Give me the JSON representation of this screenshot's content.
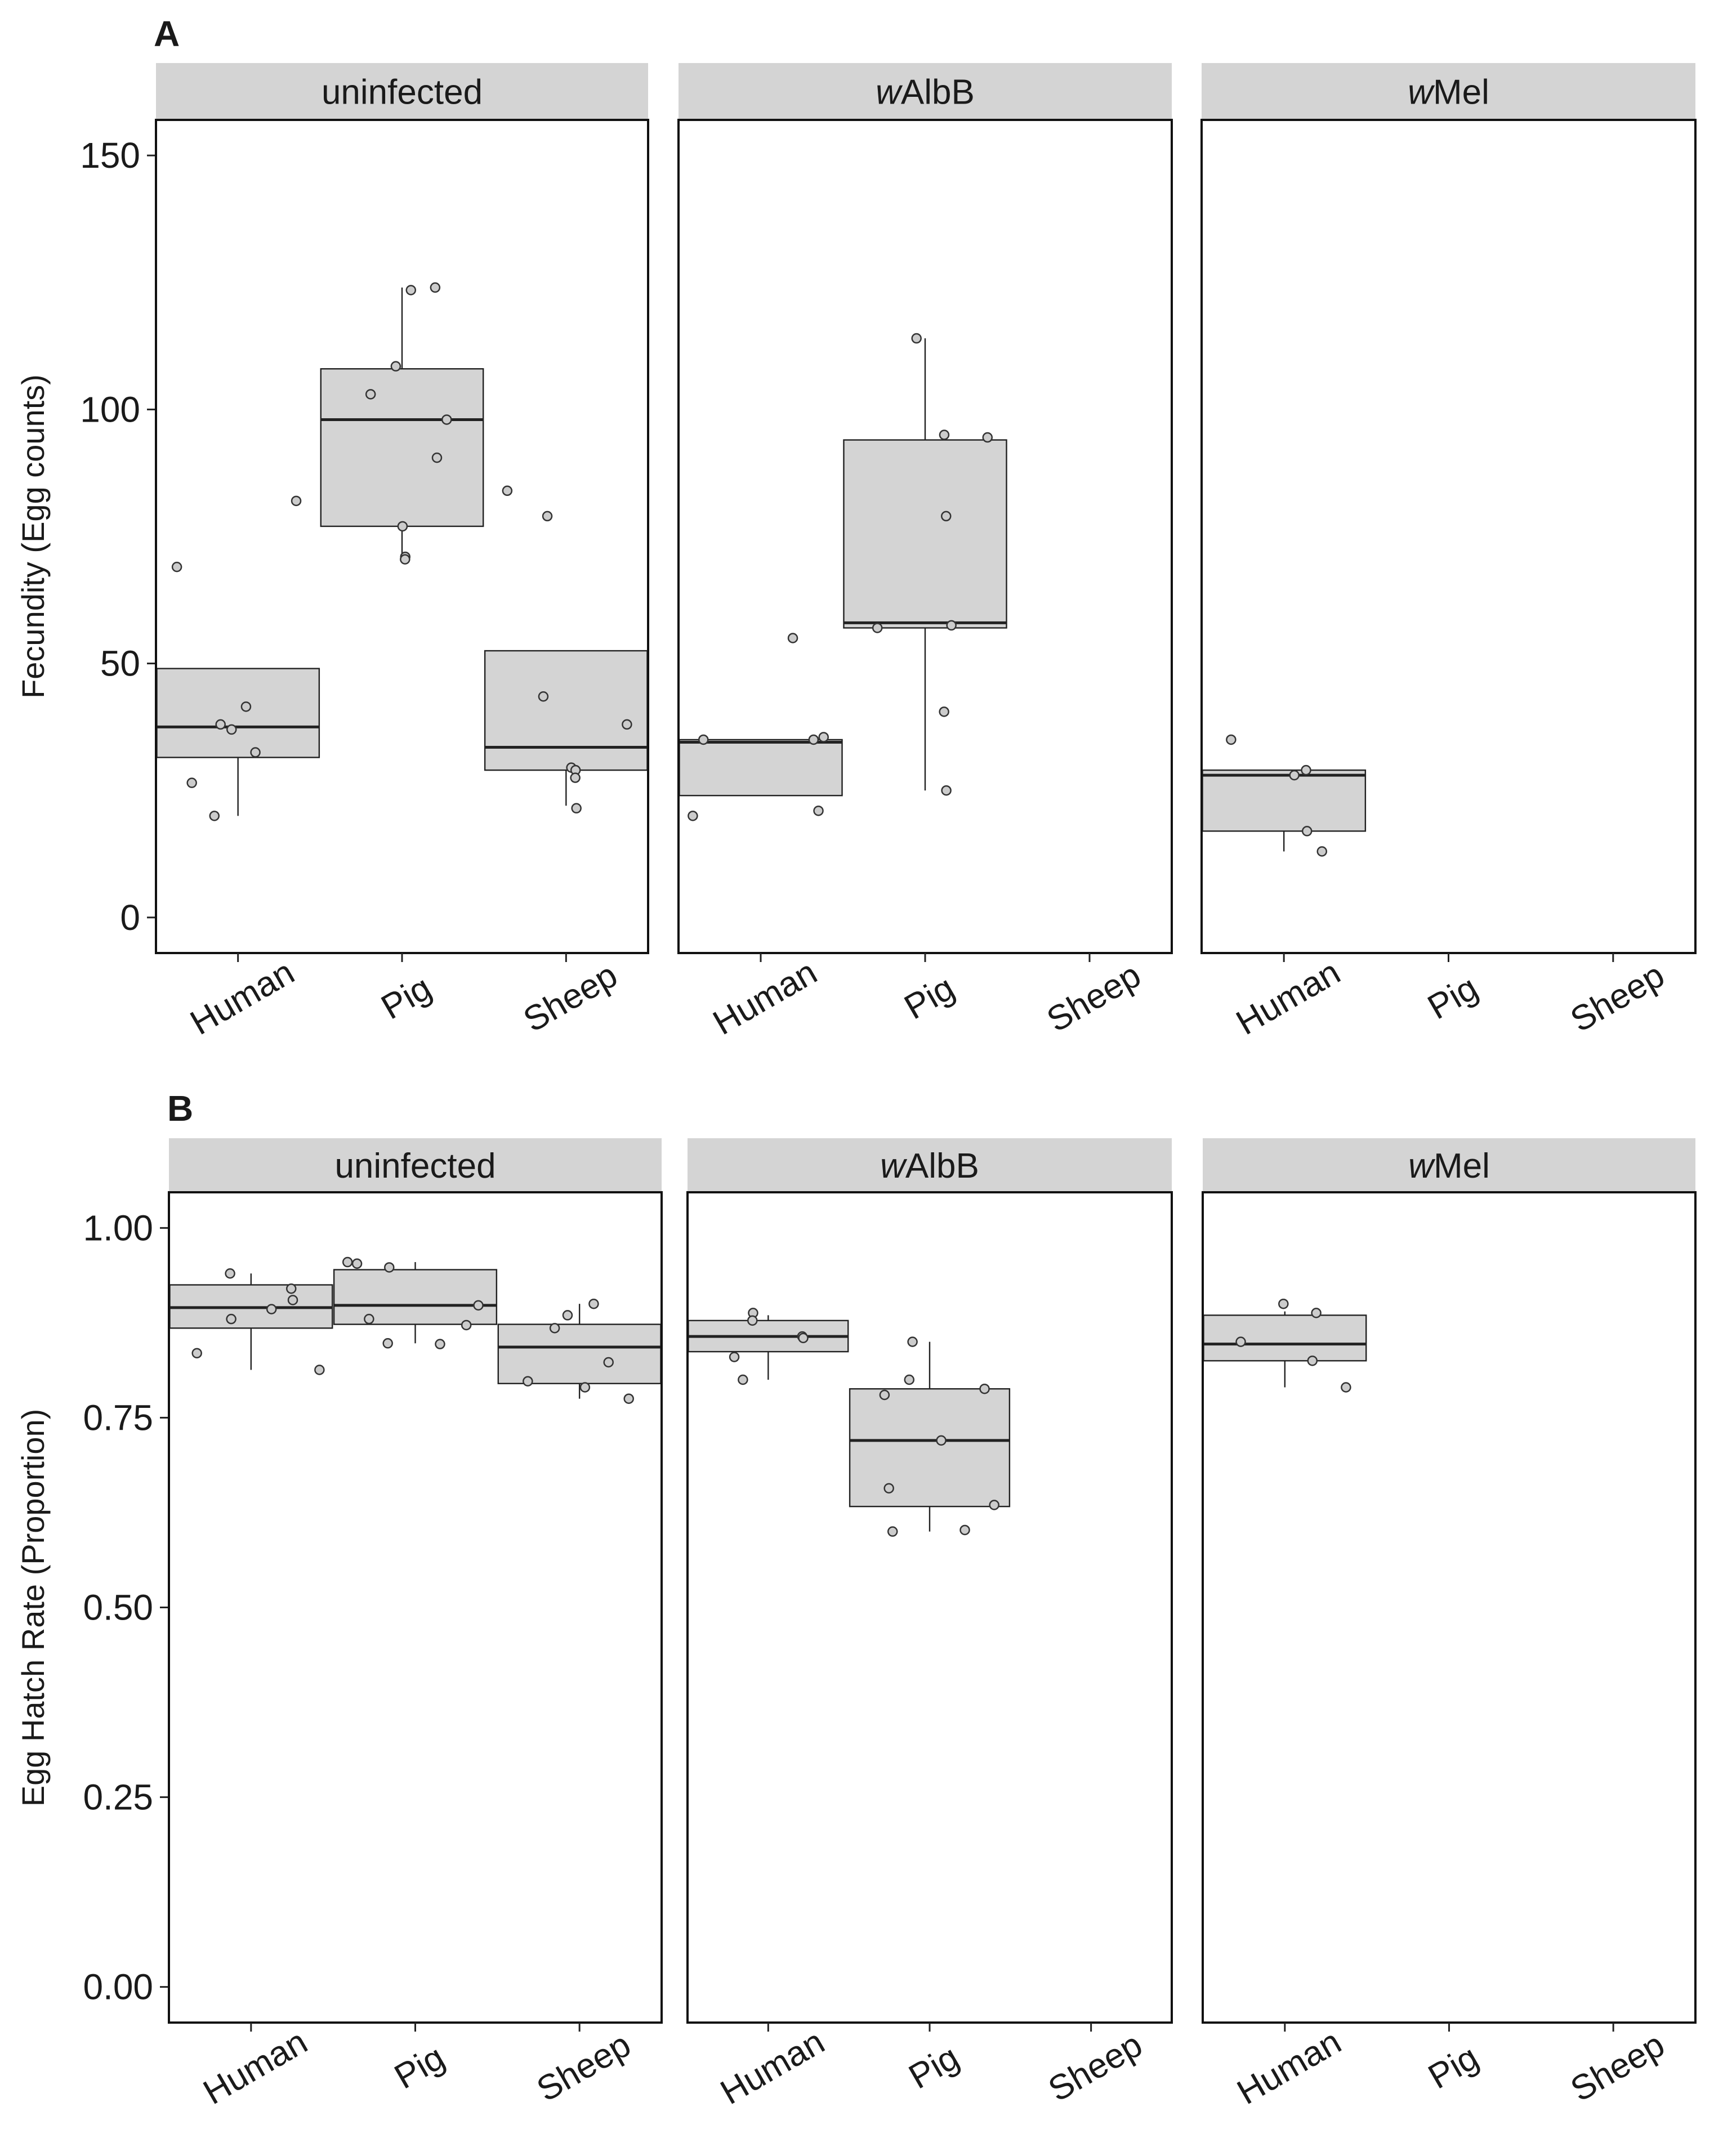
{
  "figure": {
    "colors": {
      "box_fill": "#d4d4d4",
      "strip_fill": "#d4d4d4",
      "point_fill": "#cccccc",
      "line": "#222222"
    }
  },
  "chart_data": [
    {
      "type": "box",
      "panel_label": "A",
      "ylabel": "Fecundity (Egg counts)",
      "xlabel": "",
      "ylim": [
        -7,
        157
      ],
      "yticks": [
        0,
        50,
        100,
        150
      ],
      "ytick_labels": [
        "0",
        "50",
        "100",
        "150"
      ],
      "categories": [
        "Human",
        "Pig",
        "Sheep"
      ],
      "facets": [
        {
          "strip_prefix": "",
          "strip_name": "uninfected",
          "groups": [
            {
              "category": "Human",
              "q1": 31.5,
              "median": 37.5,
              "q3": 49,
              "whisker_low": 20,
              "whisker_high": 49,
              "points": [
                82,
                69,
                41.5,
                38,
                37,
                32.5,
                26.5,
                20
              ]
            },
            {
              "category": "Pig",
              "q1": 77,
              "median": 98,
              "q3": 108,
              "whisker_low": 70.5,
              "whisker_high": 124,
              "points": [
                124,
                123.5,
                108.5,
                103,
                98,
                90.5,
                77,
                71,
                70.5
              ]
            },
            {
              "category": "Sheep",
              "q1": 29,
              "median": 33.5,
              "q3": 52.5,
              "whisker_low": 22,
              "whisker_high": 52.5,
              "points": [
                84,
                79,
                43.5,
                38,
                29.5,
                29,
                27.5,
                21.5
              ]
            }
          ]
        },
        {
          "strip_prefix": "w",
          "strip_name": "AlbB",
          "groups": [
            {
              "category": "Human",
              "q1": 24,
              "median": 34.5,
              "q3": 35,
              "whisker_low": 24,
              "whisker_high": 35,
              "points": [
                55,
                35.5,
                35,
                35,
                21,
                20
              ]
            },
            {
              "category": "Pig",
              "q1": 57,
              "median": 58,
              "q3": 94,
              "whisker_low": 25,
              "whisker_high": 114,
              "points": [
                114,
                95,
                94.5,
                79,
                57.5,
                57,
                40.5,
                25
              ]
            },
            {
              "category": "Sheep",
              "points": []
            }
          ]
        },
        {
          "strip_prefix": "w",
          "strip_name": "Mel",
          "groups": [
            {
              "category": "Human",
              "q1": 17,
              "median": 28,
              "q3": 29,
              "whisker_low": 13,
              "whisker_high": 29,
              "points": [
                35,
                29,
                28,
                17,
                13
              ]
            },
            {
              "category": "Pig",
              "points": []
            },
            {
              "category": "Sheep",
              "points": []
            }
          ]
        }
      ]
    },
    {
      "type": "box",
      "panel_label": "B",
      "ylabel": "Egg Hatch Rate (Proportion)",
      "xlabel": "",
      "ylim": [
        -0.047,
        1.047
      ],
      "yticks": [
        0,
        0.25,
        0.5,
        0.75,
        1.0
      ],
      "ytick_labels": [
        "0.00",
        "0.25",
        "0.50",
        "0.75",
        "1.00"
      ],
      "categories": [
        "Human",
        "Pig",
        "Sheep"
      ],
      "facets": [
        {
          "strip_prefix": "",
          "strip_name": "uninfected",
          "groups": [
            {
              "category": "Human",
              "q1": 0.868,
              "median": 0.895,
              "q3": 0.925,
              "whisker_low": 0.813,
              "whisker_high": 0.94,
              "points": [
                0.94,
                0.92,
                0.905,
                0.893,
                0.88,
                0.835,
                0.813
              ]
            },
            {
              "category": "Pig",
              "q1": 0.873,
              "median": 0.898,
              "q3": 0.945,
              "whisker_low": 0.848,
              "whisker_high": 0.955,
              "points": [
                0.955,
                0.953,
                0.948,
                0.898,
                0.88,
                0.872,
                0.848,
                0.847
              ]
            },
            {
              "category": "Sheep",
              "q1": 0.795,
              "median": 0.843,
              "q3": 0.873,
              "whisker_low": 0.775,
              "whisker_high": 0.9,
              "points": [
                0.9,
                0.885,
                0.868,
                0.823,
                0.798,
                0.79,
                0.775
              ]
            }
          ]
        },
        {
          "strip_prefix": "w",
          "strip_name": "AlbB",
          "groups": [
            {
              "category": "Human",
              "q1": 0.837,
              "median": 0.857,
              "q3": 0.878,
              "whisker_low": 0.8,
              "whisker_high": 0.885,
              "points": [
                0.888,
                0.878,
                0.857,
                0.855,
                0.83,
                0.8
              ]
            },
            {
              "category": "Pig",
              "q1": 0.633,
              "median": 0.72,
              "q3": 0.788,
              "whisker_low": 0.6,
              "whisker_high": 0.85,
              "points": [
                0.85,
                0.8,
                0.788,
                0.78,
                0.72,
                0.657,
                0.635,
                0.602,
                0.6
              ]
            },
            {
              "category": "Sheep",
              "points": []
            }
          ]
        },
        {
          "strip_prefix": "w",
          "strip_name": "Mel",
          "groups": [
            {
              "category": "Human",
              "q1": 0.825,
              "median": 0.847,
              "q3": 0.885,
              "whisker_low": 0.79,
              "whisker_high": 0.89,
              "points": [
                0.9,
                0.888,
                0.85,
                0.825,
                0.79
              ]
            },
            {
              "category": "Pig",
              "points": []
            },
            {
              "category": "Sheep",
              "points": []
            }
          ]
        }
      ]
    }
  ]
}
